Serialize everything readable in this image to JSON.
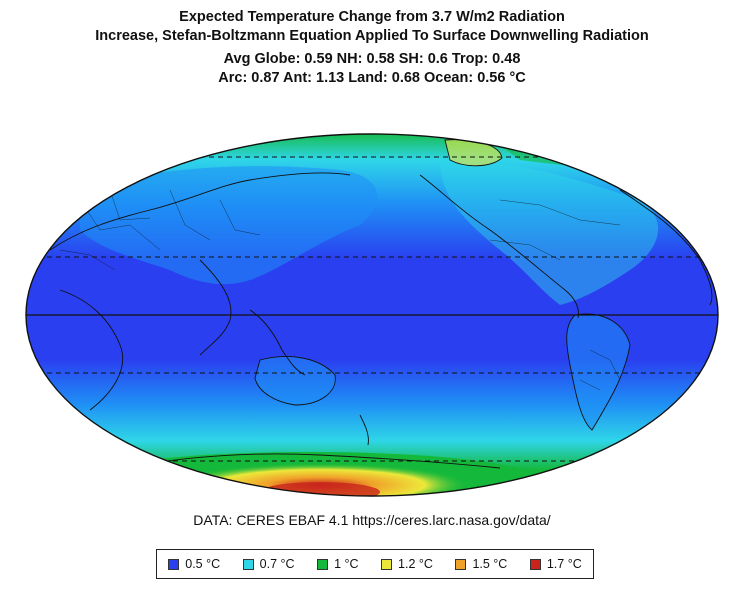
{
  "title": {
    "line1": "Expected Temperature Change from 3.7 W/m2 Radiation",
    "line2": "Increase, Stefan-Boltzmann Equation Applied To Surface Downwelling Radiation"
  },
  "stats": {
    "line1": "Avg Globe: 0.59  NH: 0.58  SH: 0.6  Trop: 0.48",
    "line2": "Arc: 0.87  Ant: 1.13  Land: 0.68 Ocean: 0.56 °C"
  },
  "source": "DATA: CERES EBAF 4.1 https://ceres.larc.nasa.gov/data/",
  "legend": [
    {
      "label": "0.5 °C",
      "color": "#2a3ff0"
    },
    {
      "label": "0.7 °C",
      "color": "#2fd6e8"
    },
    {
      "label": "1 °C",
      "color": "#14b83a"
    },
    {
      "label": "1.2 °C",
      "color": "#ece83a"
    },
    {
      "label": "1.5 °C",
      "color": "#f0a12a"
    },
    {
      "label": "1.7 °C",
      "color": "#c8241c"
    }
  ],
  "map": {
    "projection": "mollweide",
    "center": "Pacific",
    "colors": {
      "ocean_low": "#2a3ff0",
      "mid_blue": "#1f8ff5",
      "cyan": "#2fd6e8",
      "green": "#14b83a",
      "yellow": "#ece83a",
      "orange": "#f0a12a",
      "red": "#c8241c"
    }
  }
}
